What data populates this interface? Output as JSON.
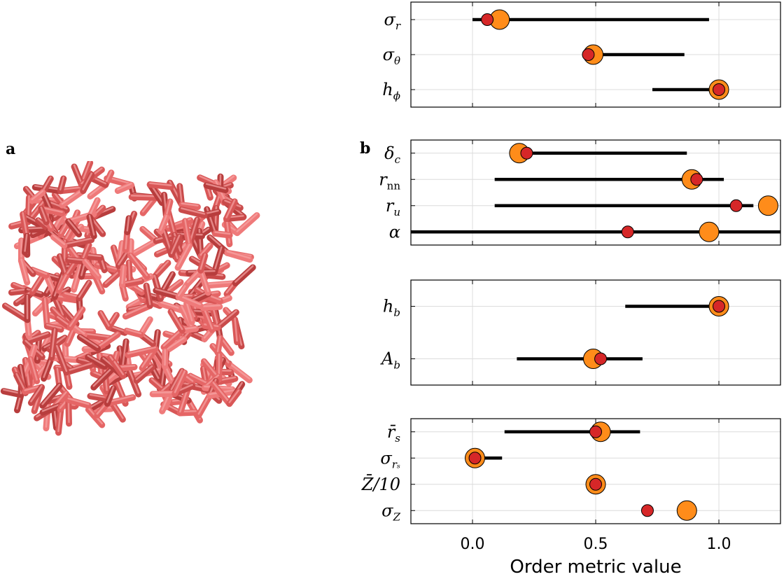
{
  "panel_labels": [
    "a",
    "b"
  ],
  "chart_data": [
    {
      "type": "dotrange",
      "categories": [
        "σ",
        "σ",
        "h"
      ],
      "subscripts": [
        "r",
        "θ",
        "ϕ"
      ],
      "ranges": [
        [
          0.0,
          0.96
        ],
        [
          0.49,
          0.86
        ],
        [
          0.73,
          1.0
        ]
      ],
      "series": [
        {
          "color": "#ff8c1a",
          "values": [
            0.11,
            0.49,
            1.0
          ]
        },
        {
          "color": "#d62728",
          "values": [
            0.06,
            0.47,
            1.0
          ]
        }
      ],
      "xlim": [
        -0.25,
        1.25
      ],
      "xticks": [
        {
          "value": 0,
          "label": "0.0"
        },
        0.5,
        {
          "value": 1,
          "label": "1.0"
        }
      ],
      "grid": true
    },
    {
      "type": "dotrange",
      "categories": [
        "δ",
        "r",
        "r",
        "α"
      ],
      "subscripts": [
        "c",
        "nn",
        "u",
        null
      ],
      "ranges": [
        [
          0.19,
          0.87
        ],
        [
          0.09,
          1.02
        ],
        [
          0.09,
          1.14
        ],
        [
          -0.26,
          1.26
        ]
      ],
      "series": [
        {
          "color": "#ff8c1a",
          "values": [
            0.19,
            0.89,
            1.2,
            0.96
          ]
        },
        {
          "color": "#d62728",
          "values": [
            0.22,
            0.91,
            1.07,
            0.63
          ]
        }
      ],
      "xlim": [
        -0.25,
        1.25
      ],
      "xticks": [
        {
          "value": 0,
          "label": "0.0"
        },
        0.5,
        {
          "value": 1,
          "label": "1.0"
        }
      ],
      "grid": true
    },
    {
      "type": "dotrange",
      "categories": [
        "h",
        "A"
      ],
      "subscripts": [
        "b",
        "b"
      ],
      "ranges": [
        [
          0.62,
          1.0
        ],
        [
          0.18,
          0.69
        ]
      ],
      "series": [
        {
          "color": "#ff8c1a",
          "values": [
            1.0,
            0.49
          ]
        },
        {
          "color": "#d62728",
          "values": [
            1.0,
            0.52
          ]
        }
      ],
      "xlim": [
        -0.25,
        1.25
      ],
      "xticks": [
        {
          "value": 0,
          "label": "0.0"
        },
        0.5,
        {
          "value": 1,
          "label": "1.0"
        }
      ],
      "grid": true
    },
    {
      "type": "dotrange",
      "categories": [
        "r̄",
        "σ",
        "Z̄/10",
        "σ"
      ],
      "subscripts": [
        "s",
        "rₛ",
        null,
        "Z"
      ],
      "ranges": [
        [
          0.13,
          0.68
        ],
        [
          0.0,
          0.12
        ],
        null,
        null
      ],
      "series": [
        {
          "color": "#ff8c1a",
          "values": [
            0.52,
            0.01,
            0.5,
            0.87
          ]
        },
        {
          "color": "#d62728",
          "values": [
            0.5,
            0.01,
            0.5,
            0.71
          ]
        }
      ],
      "xlim": [
        -0.25,
        1.25
      ],
      "xticks": [
        {
          "value": 0,
          "label": "0.0"
        },
        0.5,
        {
          "value": 1,
          "label": "1.0"
        }
      ],
      "grid": true,
      "xlabel": "Order metric value"
    }
  ]
}
